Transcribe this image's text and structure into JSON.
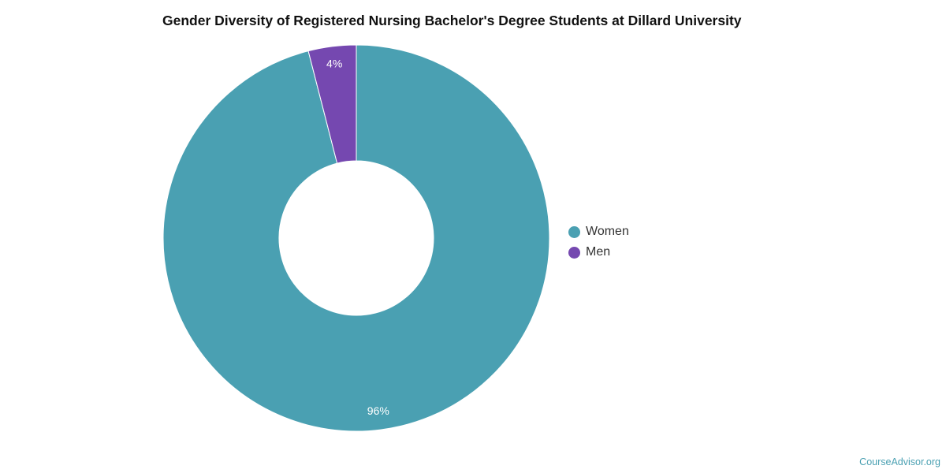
{
  "chart_data": {
    "type": "pie",
    "title": "Gender Diversity of Registered Nursing Bachelor's Degree Students at Dillard University",
    "categories": [
      "Women",
      "Men"
    ],
    "values": [
      96,
      4
    ],
    "value_labels": [
      "96%",
      "4%"
    ],
    "colors": [
      "#4aa0b2",
      "#7548b0"
    ],
    "donut": true,
    "legend_position": "right"
  },
  "source_text": "CourseAdvisor.org"
}
